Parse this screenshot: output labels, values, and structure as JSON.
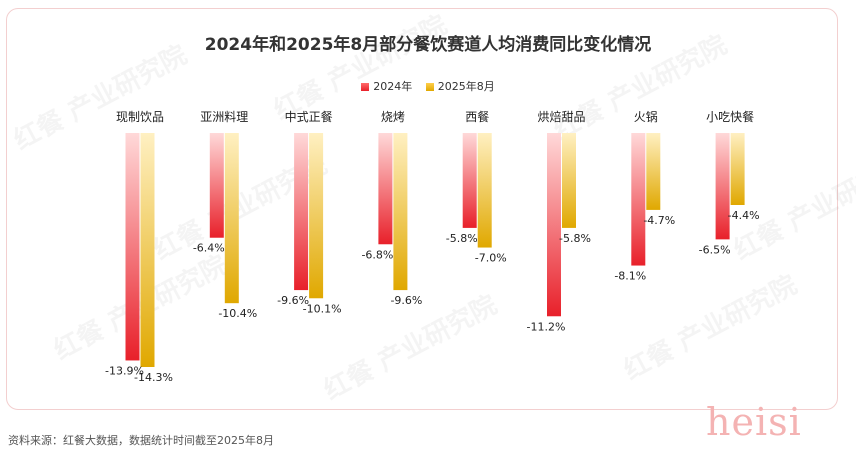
{
  "title": "2024年和2025年8月部分餐饮赛道人均消费同比变化情况",
  "legend": {
    "s1": "2024年",
    "s2": "2025年8月"
  },
  "watermark": "红餐 产业研究院",
  "footnote": "资料来源：红餐大数据，数据统计时间截至2025年8月",
  "signature": "heisi",
  "colors": {
    "s2024_top": "#ffd9d9",
    "s2024_bottom": "#e8202a",
    "s2025_top": "#fff0c2",
    "s2025_bottom": "#e0a800"
  },
  "chart_data": {
    "type": "bar",
    "categories": [
      "现制饮品",
      "亚洲料理",
      "中式正餐",
      "烧烤",
      "西餐",
      "烘焙甜品",
      "火锅",
      "小吃快餐"
    ],
    "series": [
      {
        "name": "2024年",
        "values": [
          -13.9,
          -6.4,
          -9.6,
          -6.8,
          -5.8,
          -11.2,
          -8.1,
          -6.5
        ]
      },
      {
        "name": "2025年8月",
        "values": [
          -14.3,
          -10.4,
          -10.1,
          -9.6,
          -7.0,
          -5.8,
          -4.7,
          -4.4
        ]
      }
    ],
    "value_format": "%",
    "ylim": [
      -14.3,
      0
    ],
    "grid": false,
    "legend_position": "top-center"
  }
}
